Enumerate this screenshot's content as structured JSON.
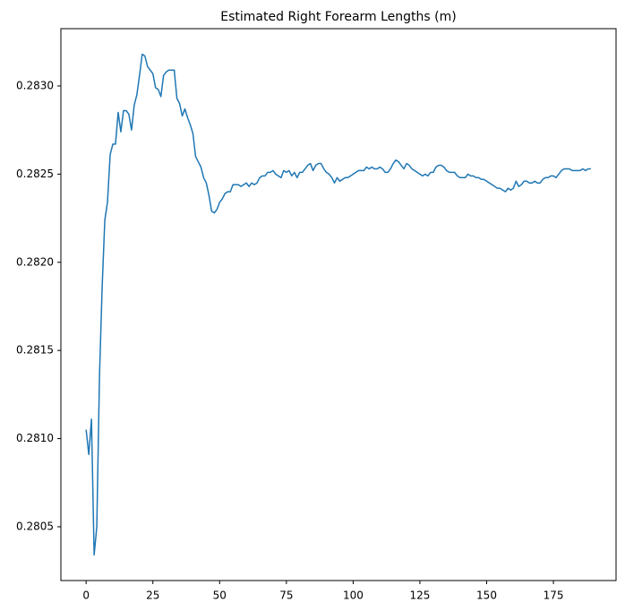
{
  "chart_data": {
    "type": "line",
    "title": "Estimated Right Forearm Lengths (m)",
    "color": "#1f77b4",
    "x": [
      0,
      1,
      2,
      3,
      4,
      5,
      6,
      7,
      8,
      9,
      10,
      11,
      12,
      13,
      14,
      15,
      16,
      17,
      18,
      19,
      20,
      21,
      22,
      23,
      24,
      25,
      26,
      27,
      28,
      29,
      30,
      31,
      32,
      33,
      34,
      35,
      36,
      37,
      38,
      39,
      40,
      41,
      42,
      43,
      44,
      45,
      46,
      47,
      48,
      49,
      50,
      51,
      52,
      53,
      54,
      55,
      56,
      57,
      58,
      59,
      60,
      61,
      62,
      63,
      64,
      65,
      66,
      67,
      68,
      69,
      70,
      71,
      72,
      73,
      74,
      75,
      76,
      77,
      78,
      79,
      80,
      81,
      82,
      83,
      84,
      85,
      86,
      87,
      88,
      89,
      90,
      91,
      92,
      93,
      94,
      95,
      96,
      97,
      98,
      99,
      100,
      101,
      102,
      103,
      104,
      105,
      106,
      107,
      108,
      109,
      110,
      111,
      112,
      113,
      114,
      115,
      116,
      117,
      118,
      119,
      120,
      121,
      122,
      123,
      124,
      125,
      126,
      127,
      128,
      129,
      130,
      131,
      132,
      133,
      134,
      135,
      136,
      137,
      138,
      139,
      140,
      141,
      142,
      143,
      144,
      145,
      146,
      147,
      148,
      149,
      150,
      151,
      152,
      153,
      154,
      155,
      156,
      157,
      158,
      159,
      160,
      161,
      162,
      163,
      164,
      165,
      166,
      167,
      168,
      169,
      170,
      171,
      172,
      173,
      174,
      175,
      176,
      177,
      178,
      179,
      180,
      181,
      182,
      183,
      184,
      185,
      186,
      187,
      188,
      189
    ],
    "values": [
      0.28105,
      0.28091,
      0.28111,
      0.28034,
      0.2805,
      0.28135,
      0.28186,
      0.28224,
      0.28234,
      0.28261,
      0.28267,
      0.28267,
      0.28285,
      0.28274,
      0.28286,
      0.28286,
      0.28284,
      0.28275,
      0.28289,
      0.28295,
      0.28306,
      0.28318,
      0.28317,
      0.28311,
      0.28309,
      0.28307,
      0.28299,
      0.28298,
      0.28294,
      0.28306,
      0.28308,
      0.28309,
      0.28309,
      0.28309,
      0.28293,
      0.2829,
      0.28283,
      0.28287,
      0.28282,
      0.28278,
      0.28273,
      0.2826,
      0.28257,
      0.28254,
      0.28248,
      0.28245,
      0.28238,
      0.28229,
      0.28228,
      0.2823,
      0.28234,
      0.28236,
      0.28239,
      0.2824,
      0.2824,
      0.28244,
      0.28244,
      0.28244,
      0.28243,
      0.28244,
      0.28245,
      0.28243,
      0.28245,
      0.28244,
      0.28245,
      0.28248,
      0.28249,
      0.28249,
      0.28251,
      0.28251,
      0.28252,
      0.2825,
      0.28249,
      0.28248,
      0.28252,
      0.28251,
      0.28252,
      0.28249,
      0.28251,
      0.28248,
      0.28251,
      0.28251,
      0.28253,
      0.28255,
      0.28256,
      0.28252,
      0.28255,
      0.28256,
      0.28256,
      0.28253,
      0.28251,
      0.2825,
      0.28248,
      0.28245,
      0.28248,
      0.28246,
      0.28247,
      0.28248,
      0.28248,
      0.28249,
      0.2825,
      0.28251,
      0.28252,
      0.28252,
      0.28252,
      0.28254,
      0.28253,
      0.28254,
      0.28253,
      0.28253,
      0.28254,
      0.28253,
      0.28251,
      0.28251,
      0.28253,
      0.28256,
      0.28258,
      0.28257,
      0.28255,
      0.28253,
      0.28256,
      0.28255,
      0.28253,
      0.28252,
      0.28251,
      0.2825,
      0.28249,
      0.2825,
      0.28249,
      0.28251,
      0.28251,
      0.28254,
      0.28255,
      0.28255,
      0.28254,
      0.28252,
      0.28251,
      0.28251,
      0.28251,
      0.28249,
      0.28248,
      0.28248,
      0.28248,
      0.2825,
      0.28249,
      0.28249,
      0.28248,
      0.28248,
      0.28247,
      0.28247,
      0.28246,
      0.28245,
      0.28244,
      0.28243,
      0.28242,
      0.28242,
      0.28241,
      0.2824,
      0.28242,
      0.28241,
      0.28242,
      0.28246,
      0.28243,
      0.28244,
      0.28246,
      0.28246,
      0.28245,
      0.28245,
      0.28246,
      0.28245,
      0.28245,
      0.28247,
      0.28248,
      0.28248,
      0.28249,
      0.28249,
      0.28248,
      0.2825,
      0.28252,
      0.28253,
      0.28253,
      0.28253,
      0.28252,
      0.28252,
      0.28252,
      0.28252,
      0.28253,
      0.28252,
      0.28253,
      0.28253
    ],
    "xlim": [
      -9.45,
      198.45
    ],
    "xticks": [
      0,
      25,
      50,
      75,
      100,
      125,
      150,
      175
    ],
    "ylim": [
      0.280195,
      0.283325
    ],
    "yticks": [
      0.2805,
      {
        "value": 0.281,
        "label": "0.2810"
      },
      0.2815,
      {
        "value": 0.282,
        "label": "0.2820"
      },
      0.2825,
      {
        "value": 0.283,
        "label": "0.2830"
      }
    ],
    "grid": false
  }
}
